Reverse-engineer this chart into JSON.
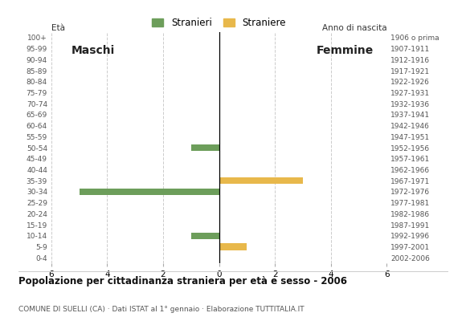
{
  "age_groups": [
    "100+",
    "95-99",
    "90-94",
    "85-89",
    "80-84",
    "75-79",
    "70-74",
    "65-69",
    "60-64",
    "55-59",
    "50-54",
    "45-49",
    "40-44",
    "35-39",
    "30-34",
    "25-29",
    "20-24",
    "15-19",
    "10-14",
    "5-9",
    "0-4"
  ],
  "birth_years": [
    "1906 o prima",
    "1907-1911",
    "1912-1916",
    "1917-1921",
    "1922-1926",
    "1927-1931",
    "1932-1936",
    "1937-1941",
    "1942-1946",
    "1947-1951",
    "1952-1956",
    "1957-1961",
    "1962-1966",
    "1967-1971",
    "1972-1976",
    "1977-1981",
    "1982-1986",
    "1987-1991",
    "1992-1996",
    "1997-2001",
    "2002-2006"
  ],
  "males": [
    0,
    0,
    0,
    0,
    0,
    0,
    0,
    0,
    0,
    0,
    1,
    0,
    0,
    0,
    5,
    0,
    0,
    0,
    1,
    0,
    0
  ],
  "females": [
    0,
    0,
    0,
    0,
    0,
    0,
    0,
    0,
    0,
    0,
    0,
    0,
    0,
    3,
    0,
    0,
    0,
    0,
    0,
    1,
    0
  ],
  "male_color": "#6d9e5b",
  "female_color": "#e8b84b",
  "title": "Popolazione per cittadinanza straniera per età e sesso - 2006",
  "subtitle": "COMUNE DI SUELLI (CA) · Dati ISTAT al 1° gennaio · Elaborazione TUTTITALIA.IT",
  "legend_male": "Stranieri",
  "legend_female": "Straniere",
  "xlim": 6,
  "maschi_label": "Maschi",
  "femmine_label": "Femmine",
  "year_label": "Anno di nascita",
  "eta_label": "Età",
  "background_color": "#ffffff",
  "grid_color": "#cccccc"
}
